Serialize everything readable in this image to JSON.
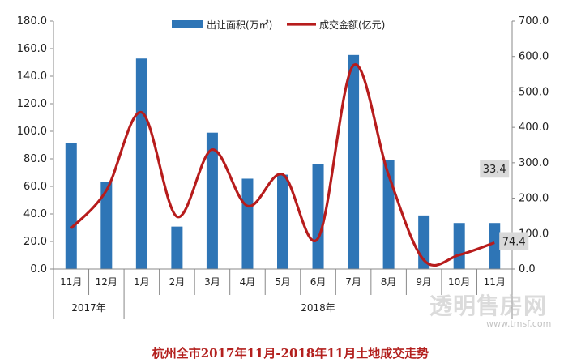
{
  "chart_data": {
    "type": "bar",
    "categories": [
      "11月",
      "12月",
      "1月",
      "2月",
      "3月",
      "4月",
      "5月",
      "6月",
      "7月",
      "8月",
      "9月",
      "10月",
      "11月"
    ],
    "year_groups": [
      {
        "label": "2017年",
        "span": 2
      },
      {
        "label": "2018年",
        "span": 11
      }
    ],
    "series": [
      {
        "name": "出让面积(万㎡)",
        "type": "bar",
        "axis": "left",
        "values": [
          91.3,
          63.2,
          152.8,
          30.8,
          99.0,
          65.6,
          68.5,
          76.0,
          155.4,
          79.3,
          38.9,
          33.4,
          33.4
        ]
      },
      {
        "name": "成交金额(亿元)",
        "type": "line",
        "axis": "right",
        "values": [
          115,
          222,
          442,
          148,
          337,
          178,
          267,
          87,
          575,
          265,
          25,
          40,
          74.4
        ]
      }
    ],
    "left_axis": {
      "min": 0,
      "max": 180,
      "step": 20,
      "tick_labels": [
        "0.0",
        "20.0",
        "40.0",
        "60.0",
        "80.0",
        "100.0",
        "120.0",
        "140.0",
        "160.0",
        "180.0"
      ]
    },
    "right_axis": {
      "min": 0,
      "max": 700,
      "step": 100,
      "tick_labels": [
        "0.0",
        "100.0",
        "200.0",
        "300.0",
        "400.0",
        "500.0",
        "600.0",
        "700.0"
      ]
    },
    "data_labels": [
      {
        "series": 0,
        "index": 12,
        "text": "33.4"
      },
      {
        "series": 1,
        "index": 12,
        "text": "74.4"
      }
    ],
    "legend_position": "top-center",
    "title": "杭州全市2017年11月-2018年11月土地成交走势"
  },
  "colors": {
    "bar": "#2e75b6",
    "line": "#b71c1c",
    "label_bg": "#d9d9d9",
    "caption": "#b3201e"
  },
  "watermark": {
    "text": "透明售房网",
    "url": "www.tmsf.com"
  }
}
